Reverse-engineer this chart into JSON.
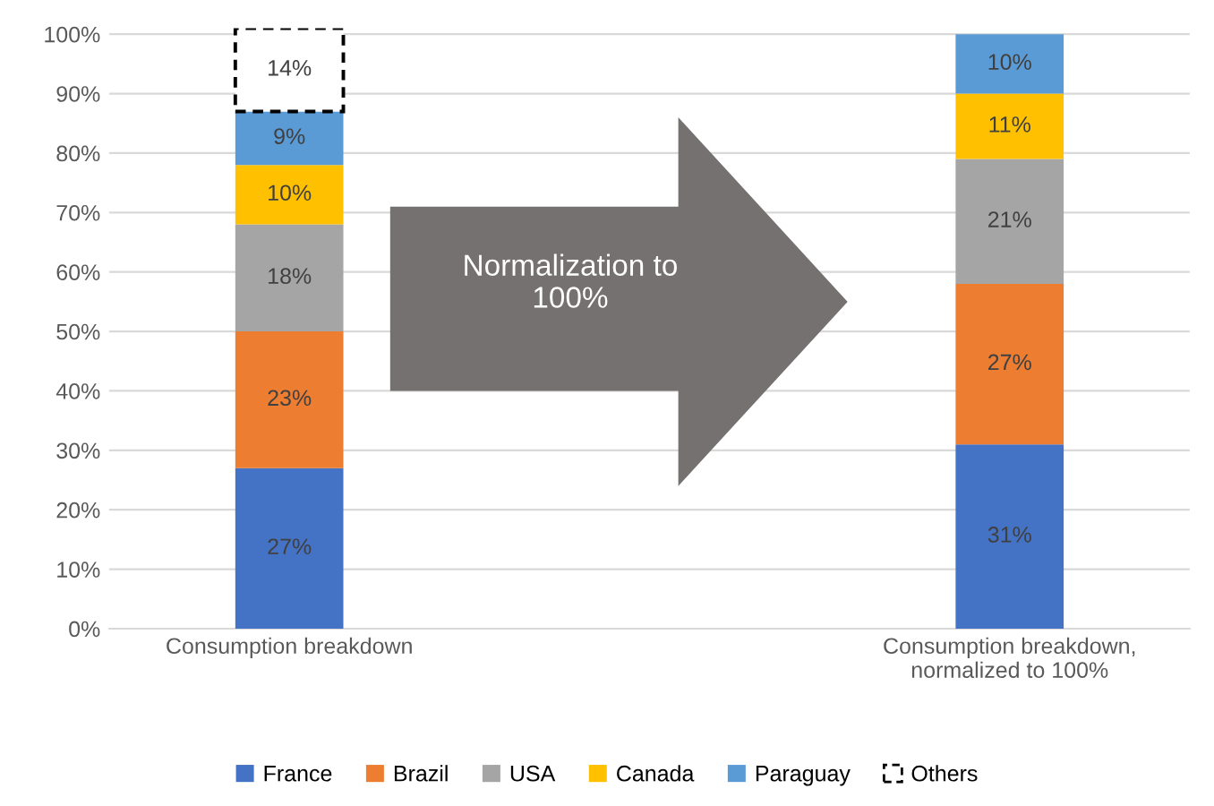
{
  "chart_data": {
    "type": "bar",
    "stacked": true,
    "categories": [
      "Consumption breakdown",
      null,
      "Consumption breakdown,\nnormalized to 100%"
    ],
    "series": [
      {
        "name": "France",
        "color": "#4472c4",
        "values": [
          27,
          null,
          31
        ],
        "value_labels": [
          "27%",
          null,
          "31%"
        ]
      },
      {
        "name": "Brazil",
        "color": "#ed7d31",
        "values": [
          23,
          null,
          27
        ],
        "value_labels": [
          "23%",
          null,
          "27%"
        ]
      },
      {
        "name": "USA",
        "color": "#a5a5a5",
        "values": [
          18,
          null,
          21
        ],
        "value_labels": [
          "18%",
          null,
          "21%"
        ]
      },
      {
        "name": "Canada",
        "color": "#ffc000",
        "values": [
          10,
          null,
          11
        ],
        "value_labels": [
          "10%",
          null,
          "11%"
        ]
      },
      {
        "name": "Paraguay",
        "color": "#5b9bd5",
        "values": [
          9,
          null,
          10
        ],
        "value_labels": [
          "9%",
          null,
          "10%"
        ]
      },
      {
        "name": "Others",
        "color": "#ffffff",
        "line_style": "dashed",
        "values": [
          14,
          null,
          null
        ],
        "value_labels": [
          "14%",
          null,
          null
        ]
      }
    ],
    "ylim": [
      0,
      101
    ],
    "yticks": [
      {
        "value": 0,
        "label": "0%"
      },
      {
        "value": 10,
        "label": "10%"
      },
      {
        "value": 20,
        "label": "20%"
      },
      {
        "value": 30,
        "label": "30%"
      },
      {
        "value": 40,
        "label": "40%"
      },
      {
        "value": 50,
        "label": "50%"
      },
      {
        "value": 60,
        "label": "60%"
      },
      {
        "value": 70,
        "label": "70%"
      },
      {
        "value": 80,
        "label": "80%"
      },
      {
        "value": 90,
        "label": "90%"
      },
      {
        "value": 100,
        "label": "100%"
      }
    ],
    "grid": "y",
    "legend": "bottom",
    "annotations": [
      "Normalization to\n100%"
    ]
  }
}
